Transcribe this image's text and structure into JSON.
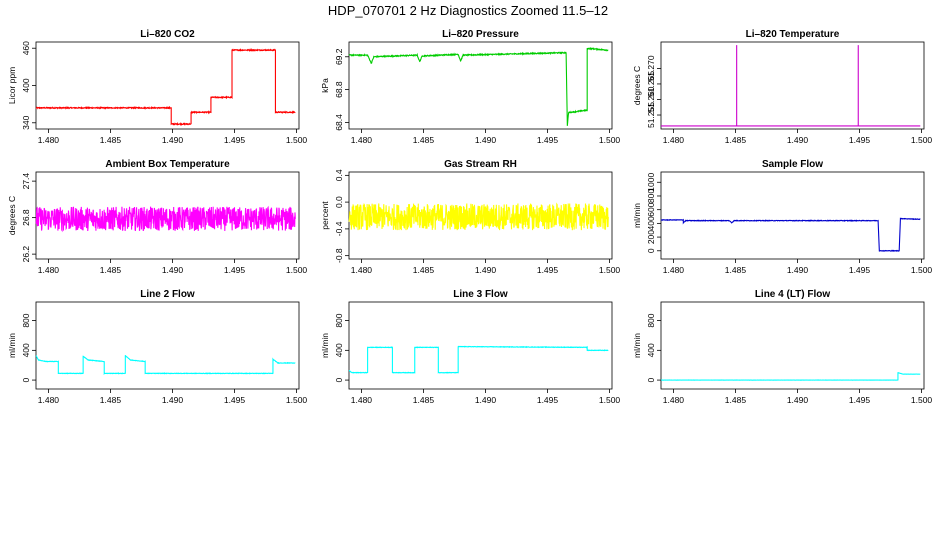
{
  "title": "HDP_070701  2 Hz Diagnostics Zoomed 11.5–12",
  "chart_data": [
    {
      "type": "line",
      "title": "Li–820 CO2",
      "ylabel": "Licor ppm",
      "color": "#ff0000",
      "xlim": [
        1.479,
        1.5002
      ],
      "ylim": [
        330,
        470
      ],
      "xticks": [
        "1.480",
        "1.485",
        "1.490",
        "1.495",
        "1.500"
      ],
      "yticks": [
        "340",
        "400",
        "460"
      ],
      "x": [
        1.479,
        1.4899,
        1.4899,
        1.4915,
        1.4915,
        1.4931,
        1.4931,
        1.4948,
        1.4948,
        1.4983,
        1.4983,
        1.4999
      ],
      "y": [
        364,
        364,
        338,
        338,
        357,
        357,
        381,
        381,
        457,
        457,
        357,
        357
      ],
      "noise": 0.8
    },
    {
      "type": "line",
      "title": "Li–820 Pressure",
      "ylabel": "kPa",
      "color": "#00cc00",
      "xlim": [
        1.479,
        1.5002
      ],
      "ylim": [
        68.32,
        69.38
      ],
      "xticks": [
        "1.480",
        "1.485",
        "1.490",
        "1.495",
        "1.500"
      ],
      "yticks": [
        "68.4",
        "68.8",
        "69.2"
      ],
      "x": [
        1.479,
        1.4805,
        1.4808,
        1.481,
        1.4845,
        1.4847,
        1.4849,
        1.4878,
        1.488,
        1.4882,
        1.4965,
        1.4966,
        1.4967,
        1.4982,
        1.4982,
        1.4985,
        1.4999
      ],
      "y": [
        69.22,
        69.22,
        69.12,
        69.2,
        69.22,
        69.14,
        69.21,
        69.23,
        69.15,
        69.22,
        69.25,
        68.36,
        68.52,
        68.55,
        69.3,
        69.3,
        69.28
      ],
      "noise": 0.006
    },
    {
      "type": "line",
      "title": "Li–820 Temperature",
      "ylabel": "degrees C",
      "color": "#cc00cc",
      "xlim": [
        1.479,
        1.5002
      ],
      "ylim": [
        51.2505,
        51.2785
      ],
      "xticks": [
        "1.480",
        "1.485",
        "1.490",
        "1.495",
        "1.500"
      ],
      "yticks": [
        "51.255",
        "51.260",
        "51.265",
        "51.270"
      ],
      "x": [
        1.479,
        1.4851,
        1.4851,
        1.4851,
        1.4949,
        1.4949,
        1.4949,
        1.4999
      ],
      "y": [
        51.2515,
        51.2515,
        51.2775,
        51.2515,
        51.2515,
        51.2775,
        51.2515,
        51.2515
      ],
      "noise": 0
    },
    {
      "type": "line",
      "title": "Ambient Box Temperature",
      "ylabel": "degrees C",
      "color": "#ff00ff",
      "xlim": [
        1.479,
        1.5002
      ],
      "ylim": [
        26.12,
        27.55
      ],
      "xticks": [
        "1.480",
        "1.485",
        "1.490",
        "1.495",
        "1.500"
      ],
      "yticks": [
        "26.2",
        "26.8",
        "27.4"
      ],
      "x": [
        1.479,
        1.4999
      ],
      "y": [
        26.78,
        26.78
      ],
      "noise": 0.2
    },
    {
      "type": "line",
      "title": "Gas Stream RH",
      "ylabel": "percent",
      "color": "#ffff00",
      "xlim": [
        1.479,
        1.5002
      ],
      "ylim": [
        -0.85,
        0.45
      ],
      "xticks": [
        "1.480",
        "1.485",
        "1.490",
        "1.495",
        "1.500"
      ],
      "yticks": [
        "-0.8",
        "-0.4",
        "0.0",
        "0.4"
      ],
      "x": [
        1.479,
        1.4999
      ],
      "y": [
        -0.22,
        -0.22
      ],
      "noise": 0.2
    },
    {
      "type": "line",
      "title": "Sample Flow",
      "ylabel": "ml/min",
      "color": "#0000cc",
      "xlim": [
        1.479,
        1.5002
      ],
      "ylim": [
        -120,
        1150
      ],
      "xticks": [
        "1.480",
        "1.485",
        "1.490",
        "1.495",
        "1.500"
      ],
      "yticks": [
        "0",
        "200",
        "400",
        "600",
        "800",
        "1000"
      ],
      "x": [
        1.479,
        1.4808,
        1.4808,
        1.481,
        1.4845,
        1.4847,
        1.4849,
        1.4965,
        1.4966,
        1.4982,
        1.4983,
        1.4999
      ],
      "y": [
        450,
        450,
        410,
        440,
        440,
        410,
        440,
        440,
        0,
        0,
        470,
        460
      ],
      "noise": 4
    },
    {
      "type": "line",
      "title": "Line 2 Flow",
      "ylabel": "ml/min",
      "color": "#00ffff",
      "xlim": [
        1.479,
        1.5002
      ],
      "ylim": [
        -120,
        1050
      ],
      "xticks": [
        "1.480",
        "1.485",
        "1.490",
        "1.495",
        "1.500"
      ],
      "yticks": [
        "0",
        "400",
        "800"
      ],
      "x": [
        1.479,
        1.4792,
        1.4798,
        1.4808,
        1.4808,
        1.4828,
        1.4828,
        1.4832,
        1.4845,
        1.4845,
        1.4862,
        1.4862,
        1.4866,
        1.4878,
        1.4878,
        1.4981,
        1.4981,
        1.4985,
        1.4999
      ],
      "y": [
        330,
        270,
        250,
        250,
        90,
        90,
        320,
        270,
        250,
        90,
        90,
        330,
        270,
        250,
        90,
        90,
        280,
        230,
        230
      ],
      "noise": 3
    },
    {
      "type": "line",
      "title": "Line 3 Flow",
      "ylabel": "ml/min",
      "color": "#00ffff",
      "xlim": [
        1.479,
        1.5002
      ],
      "ylim": [
        -120,
        1050
      ],
      "xticks": [
        "1.480",
        "1.485",
        "1.490",
        "1.495",
        "1.500"
      ],
      "yticks": [
        "0",
        "400",
        "800"
      ],
      "x": [
        1.479,
        1.4792,
        1.4805,
        1.4805,
        1.4825,
        1.4825,
        1.4843,
        1.4843,
        1.4862,
        1.4862,
        1.4878,
        1.4878,
        1.4982,
        1.4982,
        1.4999
      ],
      "y": [
        130,
        100,
        100,
        440,
        440,
        100,
        100,
        440,
        440,
        100,
        100,
        450,
        440,
        400,
        400
      ],
      "noise": 3
    },
    {
      "type": "line",
      "title": "Line 4 (LT) Flow",
      "ylabel": "ml/min",
      "color": "#00ffff",
      "xlim": [
        1.479,
        1.5002
      ],
      "ylim": [
        -120,
        1050
      ],
      "xticks": [
        "1.480",
        "1.485",
        "1.490",
        "1.495",
        "1.500"
      ],
      "yticks": [
        "0",
        "400",
        "800"
      ],
      "x": [
        1.479,
        1.4981,
        1.4981,
        1.4985,
        1.4999
      ],
      "y": [
        0,
        0,
        100,
        80,
        80
      ],
      "noise": 1
    }
  ]
}
